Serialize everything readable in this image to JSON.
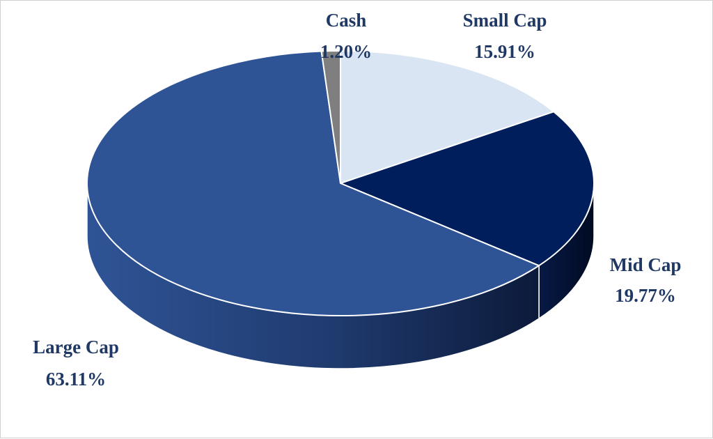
{
  "chart_data": {
    "type": "pie",
    "style": "3d",
    "slices": [
      {
        "name": "Small Cap",
        "value": 15.91,
        "value_label": "15.91%",
        "color": "#dae5f3"
      },
      {
        "name": "Mid Cap",
        "value": 19.77,
        "value_label": "19.77%",
        "color": "#001e5c"
      },
      {
        "name": "Large Cap",
        "value": 63.11,
        "value_label": "63.11%",
        "color": "#2f5496"
      },
      {
        "name": "Cash",
        "value": 1.2,
        "value_label": "1.20%",
        "color": "#7f7f7f"
      }
    ],
    "start_angle": "top (12 o'clock)",
    "direction": "clockwise",
    "legend": "none",
    "label_color": "#1f3864"
  }
}
